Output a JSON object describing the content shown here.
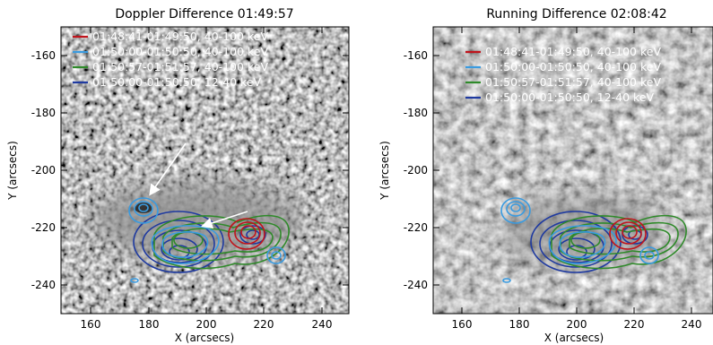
{
  "panels": [
    {
      "title": "Doppler Difference 01:49:57",
      "xlabel": "X (arcsecs)",
      "ylabel": "Y (arcsecs)",
      "xticks": [
        "160",
        "180",
        "200",
        "220",
        "240"
      ],
      "yticks": [
        "-160",
        "-180",
        "-200",
        "-220",
        "-240"
      ],
      "legend": [
        {
          "label": "01:48:41-01:49:50, 40-100 keV",
          "color": "#c0141c"
        },
        {
          "label": "01:50:00-01:50:50, 40-100 keV",
          "color": "#3a9be0"
        },
        {
          "label": "01:50:57-01:51:57, 40-100 keV",
          "color": "#2f8a2a"
        },
        {
          "label": "01:50:00-01:50:50, 12-40 keV",
          "color": "#1f3aa0"
        }
      ],
      "arrows": true
    },
    {
      "title": "Running Difference 02:08:42",
      "xlabel": "X (arcsecs)",
      "ylabel": "Y (arcsecs)",
      "xticks": [
        "160",
        "180",
        "200",
        "220",
        "240"
      ],
      "yticks": [
        "-160",
        "-180",
        "-200",
        "-220",
        "-240"
      ],
      "legend": [
        {
          "label": "01:48:41-01:49:50, 40-100 keV",
          "color": "#c0141c"
        },
        {
          "label": "01:50:00-01:50:50, 40-100 keV",
          "color": "#3a9be0"
        },
        {
          "label": "01:50:57-01:51:57, 40-100 keV",
          "color": "#2f8a2a"
        },
        {
          "label": "01:50:00-01:50:50, 12-40 keV",
          "color": "#1f3aa0"
        }
      ],
      "arrows": false
    }
  ]
}
